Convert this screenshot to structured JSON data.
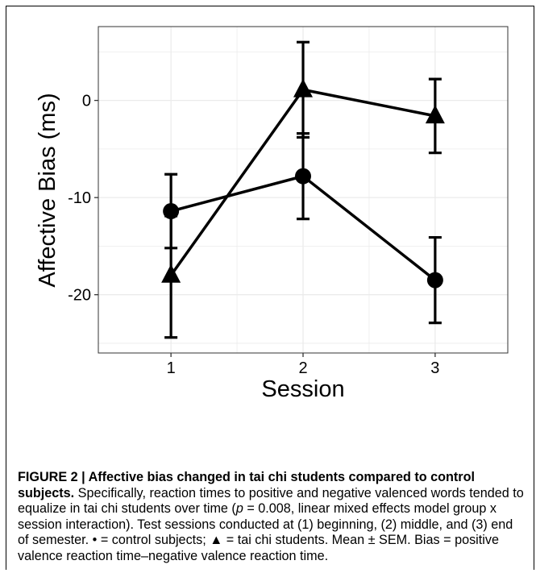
{
  "chart_data": {
    "type": "line",
    "xlabel": "Session",
    "ylabel": "Affective Bias (ms)",
    "categories": [
      "1",
      "2",
      "3"
    ],
    "x": [
      1,
      2,
      3
    ],
    "xlim": [
      0.45,
      3.55
    ],
    "ylim": [
      -26,
      7.6
    ],
    "yticks": [
      0,
      -10,
      -20
    ],
    "ytick_labels": [
      "0",
      "-10",
      "-20"
    ],
    "grid": true,
    "legend": "none",
    "series": [
      {
        "marker": "circle",
        "values": [
          -11.4,
          -7.8,
          -18.5
        ],
        "error_low": [
          -15.2,
          -12.2,
          -22.9
        ],
        "error_high": [
          -7.6,
          -3.4,
          -14.1
        ]
      },
      {
        "marker": "triangle",
        "values": [
          -18.0,
          1.1,
          -1.6
        ],
        "error_low": [
          -24.4,
          -3.8,
          -5.4
        ],
        "error_high": [
          -11.9,
          6.0,
          2.2
        ]
      }
    ]
  },
  "caption": {
    "label": "FIGURE 2 | Affective bias changed in tai chi students compared to control subjects.",
    "body_intro": "  Specifically, reaction times to positive and negative valenced words tended to equalize in tai chi students over time (",
    "p_symbol": "p",
    "body_rest": " = 0.008, linear mixed effects model group x session interaction). Test sessions conducted at (1) beginning, (2) middle, and (3) end of semester. • = control subjects; ▲ = tai chi students. Mean ± SEM. Bias = positive valence reaction time–negative valence reaction time."
  },
  "colors": {
    "line": "#000000",
    "grid": "#ebebeb",
    "panel_border": "#333333"
  }
}
